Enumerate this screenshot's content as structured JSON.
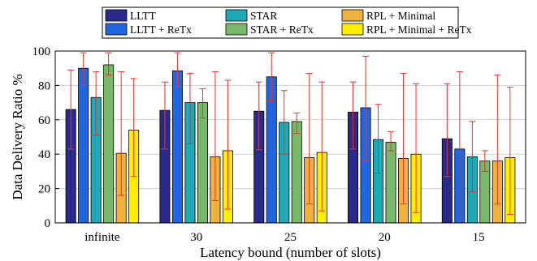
{
  "chart_data": {
    "type": "bar",
    "xlabel": "Latency bound (number of slots)",
    "ylabel": "Data Delivery Ratio %",
    "ylim": [
      0,
      100
    ],
    "yticks": [
      0,
      20,
      40,
      60,
      80,
      100
    ],
    "grid": true,
    "legend_position": "top",
    "categories": [
      "infinite",
      "30",
      "25",
      "20",
      "15"
    ],
    "series": [
      {
        "name": "LLTT",
        "color": "#2a2a8c",
        "values": [
          66,
          65.5,
          65,
          64.5,
          49
        ],
        "err_low": [
          43,
          43,
          42.5,
          43,
          27
        ],
        "err_high": [
          89,
          82,
          82,
          82,
          81
        ]
      },
      {
        "name": "LLTT + ReTx",
        "color": "#1f66e0",
        "values": [
          90,
          88.5,
          85,
          67,
          43
        ],
        "err_low": [
          80,
          79,
          71,
          36,
          0
        ],
        "err_high": [
          99,
          99,
          99,
          97,
          88
        ]
      },
      {
        "name": "STAR",
        "color": "#1fa8b5",
        "values": [
          73,
          70,
          58.5,
          48.5,
          38.5
        ],
        "err_low": [
          51,
          46,
          40,
          29,
          18
        ],
        "err_high": [
          88,
          87,
          77,
          69,
          59
        ]
      },
      {
        "name": "STAR + ReTx",
        "color": "#79b86a",
        "values": [
          92,
          70,
          59,
          47,
          36
        ],
        "err_low": [
          86,
          61,
          52,
          42,
          30
        ],
        "err_high": [
          99,
          78,
          64,
          53,
          42
        ]
      },
      {
        "name": "RPL + Minimal",
        "color": "#f0b13e",
        "values": [
          40.5,
          38.5,
          38,
          37.5,
          36
        ],
        "err_low": [
          16,
          13,
          11,
          11,
          11
        ],
        "err_high": [
          88,
          88,
          87,
          87,
          86
        ]
      },
      {
        "name": "RPL + Minimal + ReTx",
        "color": "#ffee00",
        "values": [
          54,
          42,
          41,
          40,
          38
        ],
        "err_low": [
          27,
          8,
          7,
          6,
          5
        ],
        "err_high": [
          84,
          83,
          82,
          81,
          79
        ]
      }
    ]
  }
}
